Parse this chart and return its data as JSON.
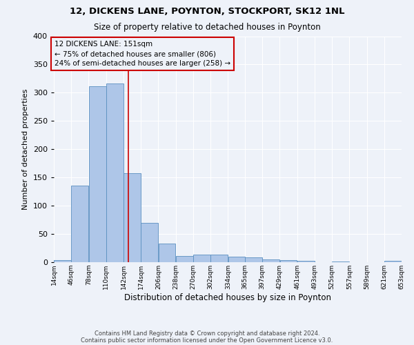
{
  "title1": "12, DICKENS LANE, POYNTON, STOCKPORT, SK12 1NL",
  "title2": "Size of property relative to detached houses in Poynton",
  "xlabel": "Distribution of detached houses by size in Poynton",
  "ylabel": "Number of detached properties",
  "footer1": "Contains HM Land Registry data © Crown copyright and database right 2024.",
  "footer2": "Contains public sector information licensed under the Open Government Licence v3.0.",
  "annotation_title": "12 DICKENS LANE: 151sqm",
  "annotation_line1": "← 75% of detached houses are smaller (806)",
  "annotation_line2": "24% of semi-detached houses are larger (258) →",
  "property_size": 151,
  "bin_edges": [
    14,
    46,
    78,
    110,
    142,
    174,
    206,
    238,
    270,
    302,
    334,
    365,
    397,
    429,
    461,
    493,
    525,
    557,
    589,
    621,
    653
  ],
  "bar_heights": [
    4,
    135,
    311,
    316,
    158,
    70,
    33,
    11,
    14,
    14,
    10,
    8,
    5,
    4,
    2,
    0,
    1,
    0,
    0,
    3
  ],
  "bar_color": "#aec6e8",
  "bar_edge_color": "#5a8fc0",
  "vline_color": "#cc0000",
  "vline_x": 151,
  "annotation_box_color": "#cc0000",
  "background_color": "#eef2f9",
  "grid_color": "#ffffff",
  "ylim": [
    0,
    400
  ],
  "yticks": [
    0,
    50,
    100,
    150,
    200,
    250,
    300,
    350,
    400
  ]
}
